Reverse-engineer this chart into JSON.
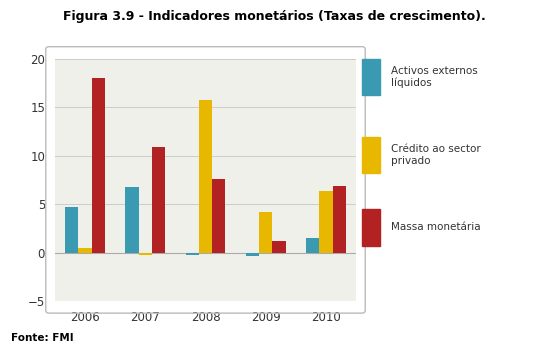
{
  "title": "Figura 3.9 - Indicadores monetários (Taxas de crescimento).",
  "years": [
    "2006",
    "2007",
    "2008",
    "2009",
    "2010"
  ],
  "series": {
    "Activos externos\nlíquidos": [
      4.7,
      6.8,
      -0.3,
      -0.4,
      1.5
    ],
    "Crédito ao sector\nprivado": [
      0.5,
      -0.2,
      15.7,
      4.2,
      6.4
    ],
    "Massa monetária": [
      18.0,
      10.9,
      7.6,
      1.2,
      6.9
    ]
  },
  "colors": {
    "Activos externos\nlíquidos": "#3a9ab2",
    "Crédito ao sector\nprivado": "#e8b800",
    "Massa monetária": "#b22222"
  },
  "ylim": [
    -5,
    20
  ],
  "yticks": [
    -5,
    0,
    5,
    10,
    15,
    20
  ],
  "background_color": "#f0f0eb",
  "grid_color": "#cccccc",
  "fonte": "Fonte: FMI",
  "bar_width": 0.22,
  "legend_labels": [
    "Activos externos\nlíquidos",
    "Crédito ao sector\nprivado",
    "Massa monetária"
  ]
}
